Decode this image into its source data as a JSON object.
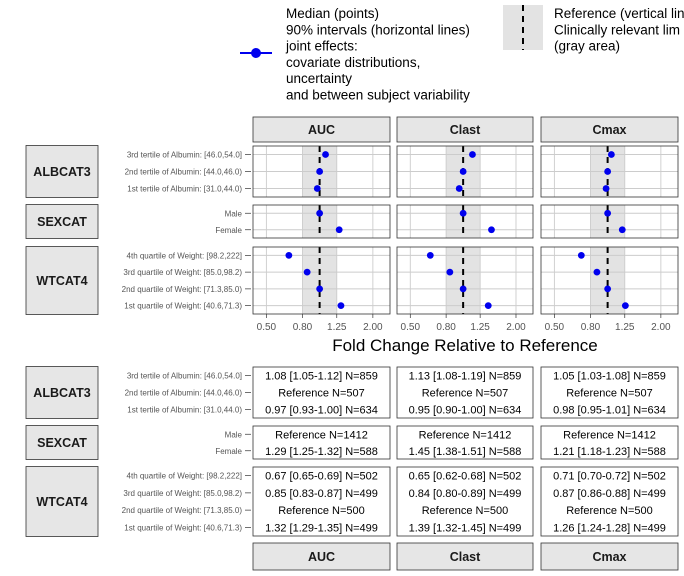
{
  "legend": {
    "point_label_lines": [
      "Median (points)",
      "90% intervals (horizontal lines)",
      "joint effects:",
      "covariate distributions,",
      "uncertainty",
      "and between subject variability"
    ],
    "ref_label_lines": [
      "Reference (vertical lin",
      "Clinically relevant lim",
      "(gray area)"
    ]
  },
  "colors": {
    "point": "#0000ee",
    "panel_bg": "#ffffff",
    "strip_bg": "#e6e6e6",
    "grid": "#cccccc",
    "ref_band": "#e3e3e3",
    "axis_text": "#555555"
  },
  "chart_data": {
    "type": "forest",
    "xlabel": "Fold Change Relative to Reference",
    "x_scale": "log",
    "x_ticks": [
      0.5,
      0.8,
      1.25,
      2.0
    ],
    "x_tick_labels": [
      "0.50",
      "0.80",
      "1.25",
      "2.00"
    ],
    "reference_line": 1.0,
    "reference_band": [
      0.8,
      1.25
    ],
    "parameters": [
      "AUC",
      "Clast",
      "Cmax"
    ],
    "groups": [
      {
        "name": "ALBCAT3",
        "rows": [
          "3rd tertile of Albumin: [46.0,54.0]",
          "2nd tertile of Albumin: [44.0,46.0)",
          "1st tertile of Albumin: [31.0,44.0)"
        ]
      },
      {
        "name": "SEXCAT",
        "rows": [
          "Male",
          "Female"
        ]
      },
      {
        "name": "WTCAT4",
        "rows": [
          "4th quartile of Weight: [98.2,222]",
          "3rd quartile of Weight: [85.0,98.2)",
          "2nd quartile of Weight: [71.3,85.0)",
          "1st quartile of Weight: [40.6,71.3)"
        ]
      }
    ],
    "medians": {
      "AUC": [
        [
          1.08,
          1.0,
          0.97
        ],
        [
          1.0,
          1.29
        ],
        [
          0.67,
          0.85,
          1.0,
          1.32
        ]
      ],
      "Clast": [
        [
          1.13,
          1.0,
          0.95
        ],
        [
          1.0,
          1.45
        ],
        [
          0.65,
          0.84,
          1.0,
          1.39
        ]
      ],
      "Cmax": [
        [
          1.05,
          1.0,
          0.98
        ],
        [
          1.0,
          1.21
        ],
        [
          0.71,
          0.87,
          1.0,
          1.26
        ]
      ]
    },
    "table_text": {
      "AUC": [
        [
          "1.08 [1.05-1.12] N=859",
          "Reference N=507",
          "0.97 [0.93-1.00] N=634"
        ],
        [
          "Reference N=1412",
          "1.29 [1.25-1.32] N=588"
        ],
        [
          "0.67 [0.65-0.69] N=502",
          "0.85 [0.83-0.87] N=499",
          "Reference N=500",
          "1.32 [1.29-1.35] N=499"
        ]
      ],
      "Clast": [
        [
          "1.13 [1.08-1.19] N=859",
          "Reference N=507",
          "0.95 [0.90-1.00] N=634"
        ],
        [
          "Reference N=1412",
          "1.45 [1.38-1.51] N=588"
        ],
        [
          "0.65 [0.62-0.68] N=502",
          "0.84 [0.80-0.89] N=499",
          "Reference N=500",
          "1.39 [1.32-1.45] N=499"
        ]
      ],
      "Cmax": [
        [
          "1.05 [1.03-1.08] N=859",
          "Reference N=507",
          "0.98 [0.95-1.01] N=634"
        ],
        [
          "Reference N=1412",
          "1.21 [1.18-1.23] N=588"
        ],
        [
          "0.71 [0.70-0.72] N=502",
          "0.87 [0.86-0.88] N=499",
          "Reference N=500",
          "1.26 [1.24-1.28] N=499"
        ]
      ]
    }
  }
}
